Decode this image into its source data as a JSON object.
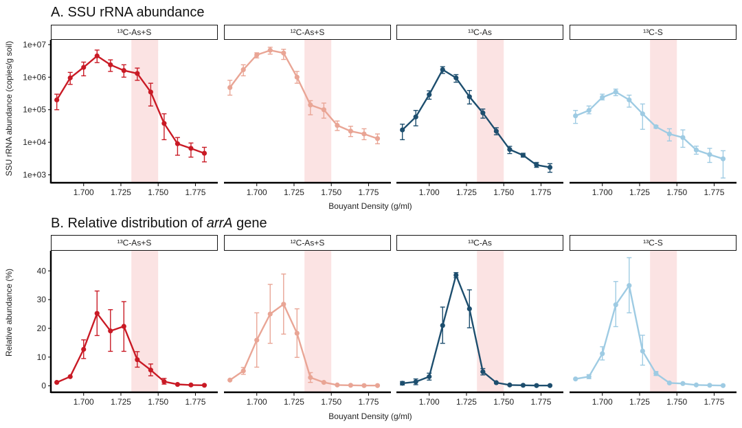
{
  "chart_data": [
    {
      "type": "line",
      "title_prefix": "A. ",
      "title": "SSU rRNA abundance",
      "xlabel": "Bouyant Density (g/ml)",
      "ylabel": "SSU rRNA abundance (copies/g soil)",
      "yscale": "log10",
      "ylim": [
        600,
        14000000
      ],
      "xlim": [
        1.678,
        1.79
      ],
      "y_ticks": [
        1000,
        10000,
        100000,
        1000000,
        10000000
      ],
      "y_tick_labels": [
        "1e+03",
        "1e+04",
        "1e+05",
        "1e+06",
        "1e+07"
      ],
      "x_ticks": [
        1.7,
        1.725,
        1.75,
        1.775
      ],
      "x_tick_labels": [
        "1.700",
        "1.725",
        "1.750",
        "1.775"
      ],
      "shaded_band": [
        1.732,
        1.75
      ],
      "facets": [
        {
          "label": "¹³C-As+S",
          "color": "#c91a25",
          "x": [
            1.682,
            1.691,
            1.7,
            1.709,
            1.718,
            1.727,
            1.736,
            1.745,
            1.754,
            1.763,
            1.772,
            1.781
          ],
          "y": [
            200000,
            950000,
            2000000,
            4500000,
            2400000,
            1600000,
            1300000,
            350000,
            38000,
            9000,
            6500,
            4600
          ],
          "err_low": [
            100000,
            600000,
            1100000,
            2800000,
            1500000,
            1000000,
            800000,
            130000,
            12000,
            4000,
            3500,
            2500
          ],
          "err_high": [
            300000,
            1400000,
            2900000,
            6800000,
            3400000,
            2400000,
            1900000,
            650000,
            75000,
            14000,
            9500,
            7000
          ]
        },
        {
          "label": "¹²C-As+S",
          "color": "#e9a595",
          "x": [
            1.682,
            1.691,
            1.7,
            1.709,
            1.718,
            1.727,
            1.736,
            1.745,
            1.754,
            1.763,
            1.772,
            1.781
          ],
          "y": [
            480000,
            1700000,
            4800000,
            6700000,
            5500000,
            1000000,
            140000,
            100000,
            33000,
            22000,
            18000,
            13000
          ],
          "err_low": [
            280000,
            1100000,
            3900000,
            5100000,
            3500000,
            650000,
            70000,
            55000,
            23000,
            15000,
            12000,
            9000
          ],
          "err_high": [
            800000,
            2400000,
            5600000,
            8300000,
            7200000,
            1500000,
            190000,
            160000,
            45000,
            31000,
            26000,
            18000
          ]
        },
        {
          "label": "¹³C-As",
          "color": "#1d4e6e",
          "x": [
            1.682,
            1.691,
            1.7,
            1.709,
            1.718,
            1.727,
            1.736,
            1.745,
            1.754,
            1.763,
            1.772,
            1.781
          ],
          "y": [
            24000,
            60000,
            290000,
            1700000,
            950000,
            250000,
            80000,
            22000,
            6000,
            4000,
            2000,
            1700
          ],
          "err_low": [
            12000,
            32000,
            210000,
            1300000,
            700000,
            150000,
            55000,
            17000,
            4500,
            3500,
            1700,
            1200
          ],
          "err_high": [
            36000,
            95000,
            380000,
            2100000,
            1200000,
            390000,
            105000,
            28000,
            7500,
            4600,
            2400,
            2200
          ]
        },
        {
          "label": "¹³C-S",
          "color": "#9ecbe3",
          "x": [
            1.682,
            1.691,
            1.7,
            1.709,
            1.718,
            1.727,
            1.736,
            1.745,
            1.754,
            1.763,
            1.772,
            1.781
          ],
          "y": [
            65000,
            95000,
            240000,
            350000,
            200000,
            75000,
            30000,
            18000,
            14000,
            5800,
            4200,
            3100
          ],
          "err_low": [
            38000,
            75000,
            200000,
            270000,
            120000,
            25000,
            27000,
            11000,
            7000,
            4300,
            2400,
            800
          ],
          "err_high": [
            95000,
            130000,
            300000,
            430000,
            280000,
            150000,
            33000,
            26000,
            24000,
            7600,
            6500,
            5500
          ]
        }
      ]
    },
    {
      "type": "line",
      "title_prefix": "B.  ",
      "title": "Relative distribution of ",
      "title_italic": "arrA",
      "title_suffix": " gene",
      "xlabel": "Bouyant Density (g/ml)",
      "ylabel": "Relative abundance (%)",
      "yscale": "linear",
      "ylim": [
        -2,
        47
      ],
      "xlim": [
        1.678,
        1.79
      ],
      "y_ticks": [
        0,
        10,
        20,
        30,
        40
      ],
      "y_tick_labels": [
        "0",
        "10",
        "20",
        "30",
        "40"
      ],
      "x_ticks": [
        1.7,
        1.725,
        1.75,
        1.775
      ],
      "x_tick_labels": [
        "1.700",
        "1.725",
        "1.750",
        "1.775"
      ],
      "shaded_band": [
        1.732,
        1.75
      ],
      "facets": [
        {
          "label": "¹³C-As+S",
          "color": "#c91a25",
          "x": [
            1.682,
            1.691,
            1.7,
            1.709,
            1.718,
            1.727,
            1.736,
            1.745,
            1.754,
            1.763,
            1.772,
            1.781
          ],
          "y": [
            1.2,
            3.2,
            12.7,
            25.2,
            19.1,
            20.7,
            9.1,
            5.5,
            1.5,
            0.5,
            0.3,
            0.2
          ],
          "err_low": [
            null,
            null,
            9.5,
            17.5,
            12.0,
            12.0,
            6.5,
            3.5,
            0.6,
            null,
            null,
            null
          ],
          "err_high": [
            null,
            null,
            16.0,
            33.0,
            26.5,
            29.3,
            11.9,
            7.6,
            2.6,
            null,
            null,
            null
          ]
        },
        {
          "label": "¹²C-As+S",
          "color": "#e9a595",
          "x": [
            1.682,
            1.691,
            1.7,
            1.709,
            1.718,
            1.727,
            1.736,
            1.745,
            1.754,
            1.763,
            1.772,
            1.781
          ],
          "y": [
            2.0,
            5.2,
            15.9,
            25.0,
            28.4,
            18.3,
            2.9,
            1.2,
            0.3,
            0.2,
            0.1,
            0.1
          ],
          "err_low": [
            null,
            4.0,
            6.5,
            14.8,
            18.0,
            9.9,
            1.2,
            null,
            null,
            null,
            null,
            null
          ],
          "err_high": [
            null,
            6.4,
            25.4,
            35.3,
            38.9,
            26.8,
            4.6,
            null,
            null,
            null,
            null,
            null
          ]
        },
        {
          "label": "¹³C-As",
          "color": "#1d4e6e",
          "x": [
            1.682,
            1.691,
            1.7,
            1.709,
            1.718,
            1.727,
            1.736,
            1.745,
            1.754,
            1.763,
            1.772,
            1.781
          ],
          "y": [
            0.9,
            1.4,
            3.2,
            21.0,
            38.5,
            26.8,
            4.9,
            1.1,
            0.3,
            0.2,
            0.1,
            0.1
          ],
          "err_low": [
            0.3,
            0.4,
            2.0,
            14.8,
            37.6,
            20.2,
            3.8,
            null,
            null,
            null,
            null,
            null
          ],
          "err_high": [
            1.5,
            2.4,
            4.4,
            27.4,
            39.4,
            33.4,
            6.0,
            null,
            null,
            null,
            null,
            null
          ]
        },
        {
          "label": "¹³C-S",
          "color": "#9ecbe3",
          "x": [
            1.682,
            1.691,
            1.7,
            1.709,
            1.718,
            1.727,
            1.736,
            1.745,
            1.754,
            1.763,
            1.772,
            1.781
          ],
          "y": [
            2.4,
            3.2,
            11.2,
            28.2,
            34.9,
            12.1,
            4.3,
            1.0,
            0.8,
            0.3,
            0.2,
            0.1
          ],
          "err_low": [
            null,
            2.5,
            9.0,
            20.6,
            25.4,
            7.2,
            3.6,
            null,
            null,
            null,
            null,
            null
          ],
          "err_high": [
            null,
            3.9,
            13.6,
            36.3,
            44.6,
            17.6,
            5.0,
            null,
            null,
            null,
            null,
            null
          ]
        }
      ]
    }
  ]
}
